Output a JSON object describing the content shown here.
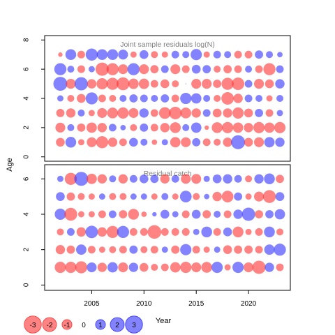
{
  "y_axis_label": "Age",
  "x_axis_label": "Year",
  "colors": {
    "negative": "#ff3030",
    "positive": "#3030ff",
    "panel_title": "#808080",
    "frame": "#000000"
  },
  "legend": {
    "values": [
      -3,
      -2,
      -1,
      0,
      1,
      2,
      3
    ],
    "labels": [
      "-3",
      "-2",
      "-1",
      "0",
      "1",
      "2",
      "3"
    ]
  },
  "chart_data": [
    {
      "type": "scatter",
      "title": "Joint sample residuals log(N)",
      "xlabel": "",
      "ylabel": "Age",
      "xlim": [
        2000.5,
        2024
      ],
      "ylim": [
        -0.3,
        8.3
      ],
      "x_ticks": [],
      "y_ticks": [
        0,
        2,
        4,
        6,
        8
      ],
      "years": [
        2002,
        2003,
        2004,
        2005,
        2006,
        2007,
        2008,
        2009,
        2010,
        2011,
        2012,
        2013,
        2014,
        2015,
        2016,
        2017,
        2018,
        2019,
        2020,
        2021,
        2022,
        2023
      ],
      "ages": [
        1,
        2,
        3,
        4,
        5,
        6,
        7
      ],
      "residuals": {
        "1": [
          -0.8,
          1.2,
          -0.4,
          -1.0,
          -1.5,
          -0.9,
          -0.6,
          0.8,
          0.5,
          -0.3,
          0.4,
          -1.1,
          -1.0,
          0.7,
          -0.6,
          -0.5,
          -0.9,
          2.0,
          -0.8,
          -1.0,
          1.1,
          0.9
        ],
        "2": [
          -1.0,
          0.5,
          -0.7,
          -1.1,
          -0.9,
          0.6,
          0.3,
          -0.5,
          0.7,
          -0.6,
          -0.9,
          -1.2,
          0.5,
          1.1,
          -0.2,
          -1.2,
          -1.3,
          -1.1,
          -0.9,
          -1.3,
          -1.1,
          -1.3
        ],
        "3": [
          -0.7,
          -0.9,
          0.5,
          -0.4,
          -1.0,
          -1.2,
          -1.3,
          -1.0,
          0.9,
          -0.6,
          -1.4,
          -1.6,
          -1.2,
          -0.9,
          0.6,
          -0.8,
          -0.9,
          -1.3,
          -0.8,
          0.7,
          -0.6,
          0.4
        ],
        "4": [
          0.4,
          -0.5,
          -0.8,
          1.5,
          -0.6,
          -0.5,
          0.5,
          0.7,
          0.6,
          0.5,
          0.7,
          -0.6,
          1.3,
          1.1,
          0.5,
          -0.5,
          -1.6,
          -0.9,
          0.6,
          0.5,
          -0.4,
          0.5
        ],
        "5": [
          2.0,
          -1.0,
          1.8,
          -0.9,
          -1.3,
          -1.5,
          -1.7,
          -1.1,
          -1.1,
          -0.6,
          -0.8,
          -0.5,
          0.0,
          -1.0,
          -1.0,
          -0.7,
          -1.5,
          -1.6,
          0.6,
          -1.0,
          -0.8,
          0.9
        ],
        "6": [
          1.5,
          0.5,
          -0.6,
          0.4,
          -1.8,
          -1.5,
          -1.0,
          1.5,
          -1.0,
          -0.7,
          0.6,
          -1.0,
          -0.6,
          0.8,
          0.7,
          -0.5,
          -0.7,
          -0.6,
          0.5,
          -0.6,
          -1.5,
          0.6
        ],
        "7": [
          -0.2,
          1.2,
          -0.6,
          1.5,
          1.2,
          1.2,
          1.0,
          -0.4,
          0.8,
          -0.5,
          -0.4,
          0.6,
          0.5,
          1.3,
          -0.4,
          0.6,
          0.5,
          -0.6,
          -0.6,
          0.7,
          0.5,
          0.3
        ]
      }
    },
    {
      "type": "scatter",
      "title": "Residual catch",
      "xlabel": "Year",
      "ylabel": "Age",
      "xlim": [
        2000.5,
        2024
      ],
      "ylim": [
        -0.3,
        6.8
      ],
      "x_ticks": [
        2005,
        2010,
        2015,
        2020
      ],
      "y_ticks": [
        0,
        2,
        4,
        6
      ],
      "years": [
        2002,
        2003,
        2004,
        2005,
        2006,
        2007,
        2008,
        2009,
        2010,
        2011,
        2012,
        2013,
        2014,
        2015,
        2016,
        2017,
        2018,
        2019,
        2020,
        2021,
        2022,
        2023
      ],
      "ages": [
        1,
        2,
        3,
        4,
        5,
        6
      ],
      "residuals": {
        "1": [
          -1.3,
          -1.3,
          -1.5,
          1.0,
          -0.9,
          1.1,
          -1.0,
          0.9,
          -0.8,
          -0.5,
          -0.6,
          -1.1,
          -1.3,
          -1.0,
          -1.2,
          1.3,
          -0.4,
          1.3,
          -1.0,
          -1.8,
          0.9,
          -0.6
        ],
        "2": [
          -0.9,
          -0.7,
          1.1,
          -0.6,
          -0.4,
          -0.5,
          -0.6,
          0.7,
          -0.5,
          -0.6,
          0.4,
          -0.7,
          1.3,
          -0.6,
          -0.4,
          0.4,
          -0.8,
          -0.7,
          -0.7,
          -0.6,
          1.1,
          1.5
        ],
        "3": [
          -0.5,
          0.6,
          -0.9,
          1.6,
          -0.9,
          -1.5,
          1.5,
          -0.6,
          -0.6,
          -1.9,
          -0.6,
          -0.6,
          -0.6,
          0.4,
          1.2,
          -0.6,
          0.8,
          -1.2,
          -0.4,
          -0.6,
          1.2,
          -0.5
        ],
        "4": [
          1.3,
          -1.7,
          -0.4,
          -0.4,
          -0.6,
          0.6,
          -0.7,
          -1.2,
          -0.3,
          0.2,
          0.8,
          0.4,
          -0.6,
          0.8,
          -0.7,
          0.5,
          -0.6,
          0.9,
          1.8,
          -0.7,
          0.7,
          1.1
        ],
        "5": [
          0.8,
          -0.7,
          -0.5,
          -0.4,
          0.4,
          -0.5,
          -0.5,
          0.4,
          0.4,
          -0.4,
          0.5,
          -0.4,
          1.4,
          -0.5,
          0.3,
          -0.9,
          -1.4,
          0.7,
          -0.4,
          -1.0,
          -1.7,
          0.8
        ],
        "6": [
          0.4,
          -1.5,
          2.0,
          -1.1,
          -0.9,
          0.5,
          -0.9,
          0.6,
          0.8,
          0.7,
          -0.9,
          0.6,
          -1.0,
          -1.0,
          0.4,
          0.8,
          0.9,
          0.6,
          -0.5,
          0.9,
          1.2,
          -0.7
        ]
      }
    }
  ]
}
